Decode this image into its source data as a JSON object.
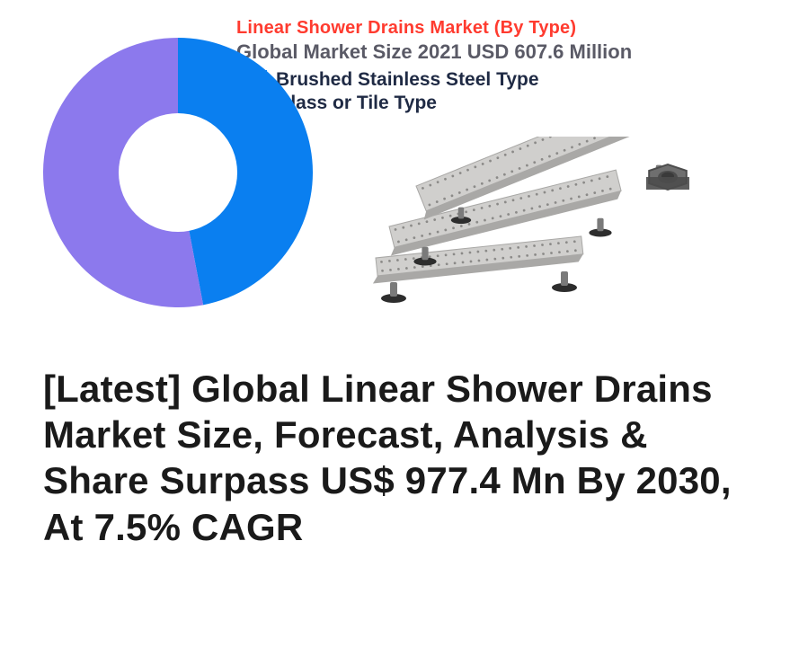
{
  "chart": {
    "title": "Linear Shower Drains Market (By Type)",
    "title_color": "#ff3b2f",
    "title_fontsize": 20,
    "subtitle": "Global Market Size 2021 USD 607.6 Million",
    "subtitle_color": "#5a5a66",
    "subtitle_fontsize": 22,
    "type": "donut",
    "inner_radius_pct": 44,
    "outer_radius_pct": 100,
    "background_color": "#ffffff",
    "slices": [
      {
        "label": "Brushed Stainless Steel Type",
        "value": 47,
        "color": "#0a7ff0"
      },
      {
        "label": "Glass or Tile Type",
        "value": 53,
        "color": "#8c79ed"
      }
    ],
    "legend": {
      "swatch_w": 34,
      "swatch_h": 22,
      "label_color": "#1f2a44",
      "label_fontsize": 21
    }
  },
  "headline": {
    "text": "[Latest] Global Linear Shower Drains Market Size, Forecast, Analysis & Share Surpass US$ 977.4 Mn By 2030, At 7.5% CAGR",
    "color": "#1a1a1a",
    "fontsize": 42,
    "fontweight": 800
  },
  "illustration": {
    "drain_metal": "#d0cfcd",
    "drain_shadow": "#a9a8a6",
    "dot_color": "#8b8a88",
    "foot_top": "#7a7a7a",
    "foot_base": "#2d2d2d",
    "nut_fill": "#6f6f6f",
    "nut_shadow": "#4d4d4d"
  }
}
